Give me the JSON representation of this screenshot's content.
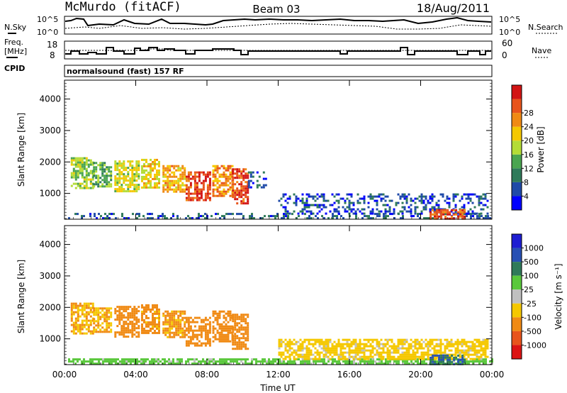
{
  "header": {
    "station": "McMurdo (fitACF)",
    "beam": "Beam 03",
    "date": "18/Aug/2011"
  },
  "strips": {
    "nsky_label": "N.Sky",
    "nsky_ticks": [
      "10^5",
      "10^0"
    ],
    "nsearch_label": "N.Search",
    "nsearch_ticks": [
      "10^5",
      "10^0"
    ],
    "freq_label_1": "Freq.",
    "freq_label_2": "[MHz]",
    "freq_ticks": [
      "18",
      "8"
    ],
    "nave_label": "Nave",
    "nave_ticks": [
      "60",
      "0"
    ],
    "cpid_label": "CPID",
    "cpid_value": "normalsound (fast) 157 RF"
  },
  "colors": {
    "power": [
      "#0000ff",
      "#1f4aa8",
      "#2f7a5a",
      "#4aa550",
      "#b4dc36",
      "#f5c800",
      "#f08a14",
      "#e8541c",
      "#d21414"
    ],
    "velocity": [
      "#1e1ed2",
      "#2850b4",
      "#2f7a5a",
      "#5ac83c",
      "#c0c0c0",
      "#f5c800",
      "#f08a14",
      "#e8541c",
      "#dc1414"
    ]
  },
  "chart_data": [
    {
      "type": "heatmap",
      "panel": "power",
      "ylabel": "Slant Range [km]",
      "x_ticks": [
        "00:00",
        "04:00",
        "08:00",
        "12:00",
        "16:00",
        "20:00",
        "00:00"
      ],
      "y_ticks": [
        1000,
        2000,
        3000,
        4000
      ],
      "xlim": [
        0,
        24
      ],
      "ylim": [
        180,
        4600
      ],
      "colorbar": {
        "label": "Power [dB]",
        "ticks": [
          "4",
          "8",
          "12",
          "16",
          "20",
          "24",
          "28"
        ],
        "range": [
          0,
          30
        ]
      },
      "regions": [
        {
          "t0": 0.35,
          "t1": 1.6,
          "r0": 1150,
          "r1": 2150,
          "value": 14
        },
        {
          "t0": 1.6,
          "t1": 2.6,
          "r0": 1200,
          "r1": 2000,
          "value": 12
        },
        {
          "t0": 2.8,
          "t1": 4.2,
          "r0": 1050,
          "r1": 2050,
          "value": 16
        },
        {
          "t0": 4.3,
          "t1": 5.3,
          "r0": 1200,
          "r1": 2100,
          "value": 18
        },
        {
          "t0": 5.5,
          "t1": 6.7,
          "r0": 1050,
          "r1": 1900,
          "value": 20
        },
        {
          "t0": 6.8,
          "t1": 8.2,
          "r0": 800,
          "r1": 1700,
          "value": 26
        },
        {
          "t0": 8.3,
          "t1": 9.4,
          "r0": 950,
          "r1": 1900,
          "value": 22
        },
        {
          "t0": 9.4,
          "t1": 10.3,
          "r0": 700,
          "r1": 1800,
          "value": 26
        },
        {
          "t0": 10.3,
          "t1": 11.3,
          "r0": 1200,
          "r1": 1700,
          "value": 6
        },
        {
          "t0": 0.2,
          "t1": 24,
          "r0": 180,
          "r1": 380,
          "value": 6
        },
        {
          "t0": 12,
          "t1": 23.8,
          "r0": 380,
          "r1": 1000,
          "value": 5
        },
        {
          "t0": 20.5,
          "t1": 22.5,
          "r0": 180,
          "r1": 500,
          "value": 26
        }
      ]
    },
    {
      "type": "heatmap",
      "panel": "velocity",
      "xlabel": "Time UT",
      "ylabel": "Slant Range [km]",
      "x_ticks": [
        "00:00",
        "04:00",
        "08:00",
        "12:00",
        "16:00",
        "20:00",
        "00:00"
      ],
      "y_ticks": [
        1000,
        2000,
        3000,
        4000
      ],
      "xlim": [
        0,
        24
      ],
      "ylim": [
        180,
        4600
      ],
      "colorbar": {
        "label": "Velocity [m s⁻¹]",
        "ticks": [
          "1000",
          "500",
          "100",
          "25",
          "-25",
          "-100",
          "-500",
          "-1000"
        ]
      },
      "regions": [
        {
          "t0": 0.35,
          "t1": 1.6,
          "r0": 1150,
          "r1": 2150,
          "value": -100
        },
        {
          "t0": 1.6,
          "t1": 2.6,
          "r0": 1200,
          "r1": 2000,
          "value": -100
        },
        {
          "t0": 2.8,
          "t1": 4.2,
          "r0": 1050,
          "r1": 2050,
          "value": -300
        },
        {
          "t0": 4.3,
          "t1": 5.3,
          "r0": 1200,
          "r1": 2100,
          "value": -200
        },
        {
          "t0": 5.5,
          "t1": 6.7,
          "r0": 1050,
          "r1": 1900,
          "value": -150
        },
        {
          "t0": 6.8,
          "t1": 8.2,
          "r0": 800,
          "r1": 1700,
          "value": -300
        },
        {
          "t0": 8.3,
          "t1": 9.4,
          "r0": 950,
          "r1": 1900,
          "value": -300
        },
        {
          "t0": 9.4,
          "t1": 10.3,
          "r0": 700,
          "r1": 1800,
          "value": -250
        },
        {
          "t0": 0.2,
          "t1": 24,
          "r0": 180,
          "r1": 380,
          "value": 50
        },
        {
          "t0": 12,
          "t1": 23.8,
          "r0": 380,
          "r1": 1000,
          "value": -50
        },
        {
          "t0": 20.5,
          "t1": 22.5,
          "r0": 180,
          "r1": 500,
          "value": 500
        }
      ]
    }
  ]
}
